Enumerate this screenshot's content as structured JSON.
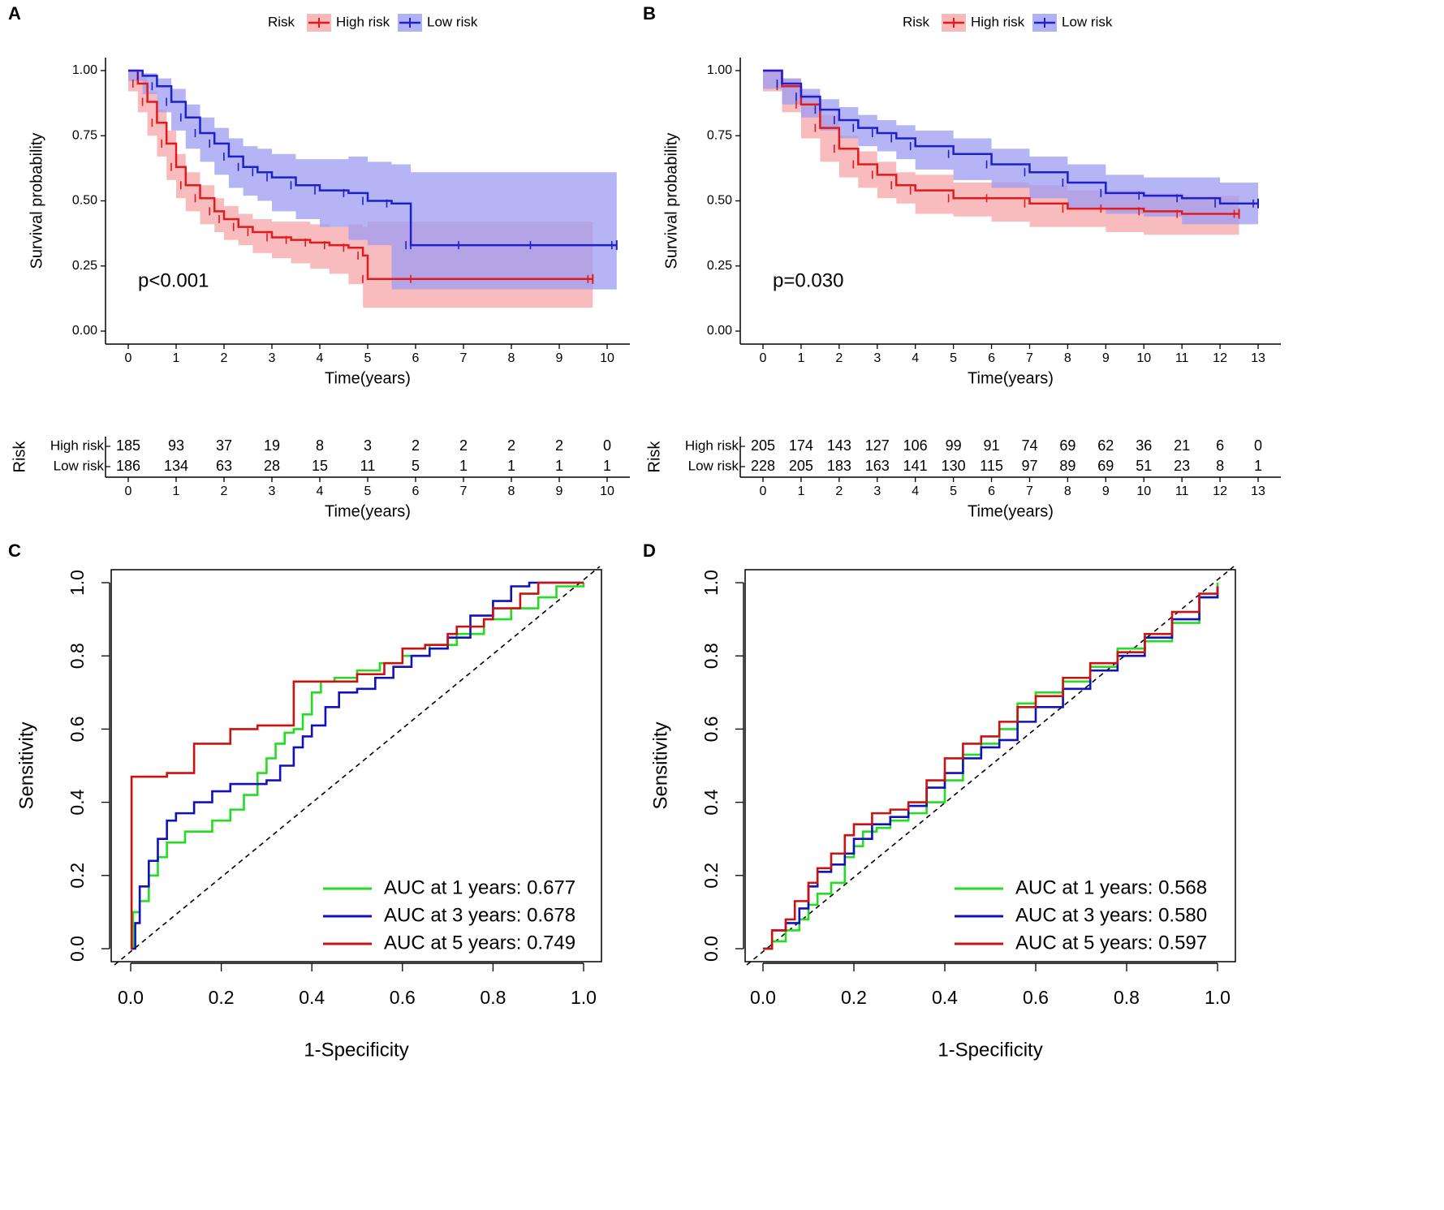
{
  "colors": {
    "high": "#e31a1c",
    "low": "#1f1fcc",
    "highFill": "#f7a6a8",
    "lowFill": "#9c9cf2",
    "y1": "#22dd22",
    "y3": "#1111bb",
    "y5": "#cc1111"
  },
  "chart_data": [
    {
      "panel": "A",
      "type": "line",
      "subtype": "kaplan-meier",
      "legend": {
        "title": "Risk",
        "items": [
          "High risk",
          "Low risk"
        ],
        "position": "top"
      },
      "xlabel": "Time(years)",
      "ylabel": "Survival probability",
      "xlim": [
        0,
        10
      ],
      "ylim": [
        0,
        1
      ],
      "xticks": [
        "0",
        "1",
        "2",
        "3",
        "4",
        "5",
        "6",
        "7",
        "8",
        "9",
        "10"
      ],
      "yticks": [
        "0.00",
        "0.25",
        "0.50",
        "0.75",
        "1.00"
      ],
      "pvalue": "p<0.001",
      "series": [
        {
          "name": "High risk",
          "x": [
            0,
            0.2,
            0.4,
            0.6,
            0.8,
            1.0,
            1.2,
            1.5,
            1.8,
            2.0,
            2.3,
            2.6,
            3.0,
            3.4,
            3.8,
            4.2,
            4.6,
            4.9,
            5.0,
            6.0,
            9.7
          ],
          "y": [
            1.0,
            0.95,
            0.88,
            0.8,
            0.72,
            0.63,
            0.56,
            0.51,
            0.46,
            0.43,
            0.4,
            0.38,
            0.36,
            0.35,
            0.34,
            0.33,
            0.32,
            0.29,
            0.2,
            0.2,
            0.2
          ],
          "lower": [
            1.0,
            0.92,
            0.84,
            0.75,
            0.67,
            0.58,
            0.51,
            0.46,
            0.41,
            0.38,
            0.35,
            0.33,
            0.3,
            0.28,
            0.26,
            0.24,
            0.22,
            0.18,
            0.09,
            0.09,
            0.09
          ],
          "upper": [
            1.0,
            0.98,
            0.92,
            0.85,
            0.77,
            0.68,
            0.61,
            0.56,
            0.51,
            0.48,
            0.45,
            0.43,
            0.42,
            0.42,
            0.41,
            0.4,
            0.41,
            0.4,
            0.42,
            0.42,
            0.42
          ]
        },
        {
          "name": "Low risk",
          "x": [
            0,
            0.3,
            0.6,
            0.9,
            1.2,
            1.5,
            1.8,
            2.1,
            2.4,
            2.7,
            3.0,
            3.5,
            4.0,
            4.6,
            5.0,
            5.5,
            5.9,
            6.0,
            7.0,
            8.5,
            10.2
          ],
          "y": [
            1.0,
            0.98,
            0.94,
            0.88,
            0.82,
            0.76,
            0.72,
            0.67,
            0.63,
            0.61,
            0.59,
            0.56,
            0.54,
            0.53,
            0.5,
            0.49,
            0.33,
            0.33,
            0.33,
            0.33,
            0.33
          ],
          "lower": [
            1.0,
            0.96,
            0.91,
            0.84,
            0.77,
            0.7,
            0.65,
            0.6,
            0.55,
            0.52,
            0.5,
            0.46,
            0.43,
            0.4,
            0.35,
            0.33,
            0.16,
            0.16,
            0.16,
            0.16,
            0.16
          ],
          "upper": [
            1.0,
            0.99,
            0.97,
            0.93,
            0.87,
            0.82,
            0.78,
            0.74,
            0.71,
            0.7,
            0.68,
            0.66,
            0.66,
            0.67,
            0.65,
            0.64,
            0.61,
            0.61,
            0.61,
            0.61,
            0.61
          ]
        }
      ],
      "risk_table": {
        "title": "Risk",
        "xlabel": "Time(years)",
        "times": [
          "0",
          "1",
          "2",
          "3",
          "4",
          "5",
          "6",
          "7",
          "8",
          "9",
          "10"
        ],
        "rows": [
          {
            "name": "High risk",
            "values": [
              "185",
              "93",
              "37",
              "19",
              "8",
              "3",
              "2",
              "2",
              "2",
              "2",
              "0"
            ]
          },
          {
            "name": "Low risk",
            "values": [
              "186",
              "134",
              "63",
              "28",
              "15",
              "11",
              "5",
              "1",
              "1",
              "1",
              "1"
            ]
          }
        ]
      }
    },
    {
      "panel": "B",
      "type": "line",
      "subtype": "kaplan-meier",
      "legend": {
        "title": "Risk",
        "items": [
          "High risk",
          "Low risk"
        ],
        "position": "top"
      },
      "xlabel": "Time(years)",
      "ylabel": "Survival probability",
      "xlim": [
        0,
        13
      ],
      "ylim": [
        0,
        1
      ],
      "xticks": [
        "0",
        "1",
        "2",
        "3",
        "4",
        "5",
        "6",
        "7",
        "8",
        "9",
        "10",
        "11",
        "12",
        "13"
      ],
      "yticks": [
        "0.00",
        "0.25",
        "0.50",
        "0.75",
        "1.00"
      ],
      "pvalue": "p=0.030",
      "series": [
        {
          "name": "High risk",
          "x": [
            0,
            0.5,
            1.0,
            1.5,
            2.0,
            2.5,
            3.0,
            3.5,
            4.0,
            5.0,
            6.0,
            7.0,
            8.0,
            9.0,
            10.0,
            11.0,
            12.5
          ],
          "y": [
            1.0,
            0.94,
            0.87,
            0.78,
            0.7,
            0.64,
            0.6,
            0.56,
            0.54,
            0.51,
            0.51,
            0.49,
            0.47,
            0.47,
            0.46,
            0.45,
            0.45
          ],
          "lower": [
            1.0,
            0.92,
            0.84,
            0.74,
            0.65,
            0.59,
            0.55,
            0.51,
            0.49,
            0.45,
            0.44,
            0.42,
            0.4,
            0.4,
            0.38,
            0.37,
            0.37
          ],
          "upper": [
            1.0,
            0.97,
            0.91,
            0.83,
            0.75,
            0.69,
            0.65,
            0.61,
            0.6,
            0.57,
            0.57,
            0.56,
            0.54,
            0.54,
            0.53,
            0.52,
            0.52
          ]
        },
        {
          "name": "Low risk",
          "x": [
            0,
            0.5,
            1.0,
            1.5,
            2.0,
            2.5,
            3.0,
            3.5,
            4.0,
            5.0,
            6.0,
            7.0,
            8.0,
            9.0,
            10.0,
            11.0,
            12.0,
            13.0
          ],
          "y": [
            1.0,
            0.95,
            0.9,
            0.85,
            0.81,
            0.78,
            0.76,
            0.74,
            0.71,
            0.68,
            0.64,
            0.61,
            0.57,
            0.53,
            0.52,
            0.51,
            0.49,
            0.49
          ],
          "lower": [
            1.0,
            0.93,
            0.87,
            0.82,
            0.77,
            0.74,
            0.71,
            0.69,
            0.66,
            0.62,
            0.58,
            0.55,
            0.51,
            0.47,
            0.45,
            0.44,
            0.41,
            0.41
          ],
          "upper": [
            1.0,
            0.97,
            0.93,
            0.89,
            0.86,
            0.83,
            0.81,
            0.79,
            0.77,
            0.74,
            0.7,
            0.67,
            0.64,
            0.6,
            0.59,
            0.59,
            0.57,
            0.57
          ]
        }
      ],
      "risk_table": {
        "title": "Risk",
        "xlabel": "Time(years)",
        "times": [
          "0",
          "1",
          "2",
          "3",
          "4",
          "5",
          "6",
          "7",
          "8",
          "9",
          "10",
          "11",
          "12",
          "13"
        ],
        "rows": [
          {
            "name": "High risk",
            "values": [
              "205",
              "174",
              "143",
              "127",
              "106",
              "99",
              "91",
              "74",
              "69",
              "62",
              "36",
              "21",
              "6",
              "0"
            ]
          },
          {
            "name": "Low risk",
            "values": [
              "228",
              "205",
              "183",
              "163",
              "141",
              "130",
              "115",
              "97",
              "89",
              "69",
              "51",
              "23",
              "8",
              "1"
            ]
          }
        ]
      }
    },
    {
      "panel": "C",
      "type": "line",
      "subtype": "roc",
      "xlabel": "1-Specificity",
      "ylabel": "Sensitivity",
      "xlim": [
        0,
        1
      ],
      "ylim": [
        0,
        1
      ],
      "xticks": [
        "0.0",
        "0.2",
        "0.4",
        "0.6",
        "0.8",
        "1.0"
      ],
      "yticks": [
        "0.0",
        "0.2",
        "0.4",
        "0.6",
        "0.8",
        "1.0"
      ],
      "legend_position": "bottom-right",
      "series": [
        {
          "name": "AUC at 1 years: 0.677",
          "key": "y1",
          "x": [
            0,
            0.005,
            0.02,
            0.04,
            0.06,
            0.08,
            0.12,
            0.18,
            0.22,
            0.25,
            0.28,
            0.3,
            0.32,
            0.34,
            0.36,
            0.38,
            0.4,
            0.42,
            0.45,
            0.5,
            0.55,
            0.6,
            0.66,
            0.72,
            0.78,
            0.84,
            0.9,
            0.94,
            1.0
          ],
          "y": [
            0,
            0.1,
            0.13,
            0.2,
            0.25,
            0.29,
            0.32,
            0.35,
            0.38,
            0.42,
            0.48,
            0.52,
            0.56,
            0.59,
            0.6,
            0.64,
            0.7,
            0.73,
            0.74,
            0.76,
            0.78,
            0.8,
            0.83,
            0.86,
            0.9,
            0.93,
            0.96,
            0.99,
            1.0
          ]
        },
        {
          "name": "AUC at 3 years: 0.678",
          "key": "y3",
          "x": [
            0,
            0.01,
            0.02,
            0.04,
            0.06,
            0.08,
            0.1,
            0.14,
            0.18,
            0.22,
            0.26,
            0.3,
            0.33,
            0.36,
            0.38,
            0.4,
            0.43,
            0.46,
            0.5,
            0.54,
            0.58,
            0.62,
            0.66,
            0.7,
            0.75,
            0.8,
            0.84,
            0.88,
            1.0
          ],
          "y": [
            0,
            0.07,
            0.17,
            0.24,
            0.3,
            0.35,
            0.37,
            0.4,
            0.43,
            0.45,
            0.45,
            0.46,
            0.5,
            0.55,
            0.58,
            0.61,
            0.66,
            0.7,
            0.71,
            0.74,
            0.77,
            0.8,
            0.82,
            0.85,
            0.91,
            0.95,
            0.99,
            1.0,
            1.0
          ]
        },
        {
          "name": "AUC at 5 years: 0.749",
          "key": "y5",
          "x": [
            0,
            0.002,
            0.01,
            0.08,
            0.14,
            0.14,
            0.22,
            0.22,
            0.28,
            0.36,
            0.36,
            0.45,
            0.5,
            0.56,
            0.6,
            0.65,
            0.7,
            0.72,
            0.78,
            0.8,
            0.86,
            0.9,
            1.0
          ],
          "y": [
            0,
            0.47,
            0.47,
            0.48,
            0.52,
            0.56,
            0.56,
            0.6,
            0.61,
            0.61,
            0.73,
            0.73,
            0.75,
            0.78,
            0.82,
            0.83,
            0.86,
            0.88,
            0.9,
            0.93,
            0.97,
            1.0,
            1.0
          ]
        }
      ]
    },
    {
      "panel": "D",
      "type": "line",
      "subtype": "roc",
      "xlabel": "1-Specificity",
      "ylabel": "Sensitivity",
      "xlim": [
        0,
        1
      ],
      "ylim": [
        0,
        1
      ],
      "xticks": [
        "0.0",
        "0.2",
        "0.4",
        "0.6",
        "0.8",
        "1.0"
      ],
      "yticks": [
        "0.0",
        "0.2",
        "0.4",
        "0.6",
        "0.8",
        "1.0"
      ],
      "legend_position": "bottom-right",
      "series": [
        {
          "name": "AUC at 1 years: 0.568",
          "key": "y1",
          "x": [
            0,
            0.02,
            0.05,
            0.08,
            0.1,
            0.12,
            0.15,
            0.18,
            0.18,
            0.2,
            0.22,
            0.25,
            0.28,
            0.32,
            0.36,
            0.4,
            0.44,
            0.48,
            0.52,
            0.56,
            0.6,
            0.66,
            0.72,
            0.78,
            0.84,
            0.9,
            0.96,
            1.0
          ],
          "y": [
            0,
            0.02,
            0.05,
            0.08,
            0.12,
            0.15,
            0.18,
            0.18,
            0.25,
            0.28,
            0.32,
            0.33,
            0.35,
            0.37,
            0.4,
            0.46,
            0.53,
            0.56,
            0.6,
            0.67,
            0.7,
            0.73,
            0.77,
            0.82,
            0.84,
            0.89,
            0.96,
            1.0
          ]
        },
        {
          "name": "AUC at 3 years: 0.580",
          "key": "y3",
          "x": [
            0,
            0.02,
            0.05,
            0.08,
            0.1,
            0.12,
            0.15,
            0.18,
            0.2,
            0.24,
            0.28,
            0.32,
            0.36,
            0.4,
            0.44,
            0.48,
            0.52,
            0.56,
            0.6,
            0.66,
            0.72,
            0.78,
            0.84,
            0.9,
            0.96,
            1.0
          ],
          "y": [
            0,
            0.05,
            0.07,
            0.11,
            0.17,
            0.21,
            0.23,
            0.26,
            0.3,
            0.34,
            0.36,
            0.39,
            0.44,
            0.48,
            0.52,
            0.55,
            0.57,
            0.62,
            0.66,
            0.71,
            0.76,
            0.8,
            0.85,
            0.9,
            0.96,
            0.99
          ]
        },
        {
          "name": "AUC at 5 years: 0.597",
          "key": "y5",
          "x": [
            0,
            0.02,
            0.05,
            0.07,
            0.1,
            0.12,
            0.15,
            0.18,
            0.2,
            0.24,
            0.28,
            0.32,
            0.36,
            0.4,
            0.44,
            0.48,
            0.52,
            0.56,
            0.6,
            0.66,
            0.72,
            0.78,
            0.84,
            0.9,
            0.96,
            1.0
          ],
          "y": [
            0,
            0.05,
            0.08,
            0.13,
            0.18,
            0.22,
            0.26,
            0.31,
            0.34,
            0.37,
            0.38,
            0.4,
            0.46,
            0.52,
            0.56,
            0.58,
            0.62,
            0.66,
            0.69,
            0.74,
            0.78,
            0.81,
            0.86,
            0.92,
            0.97,
            0.99
          ]
        }
      ]
    }
  ]
}
